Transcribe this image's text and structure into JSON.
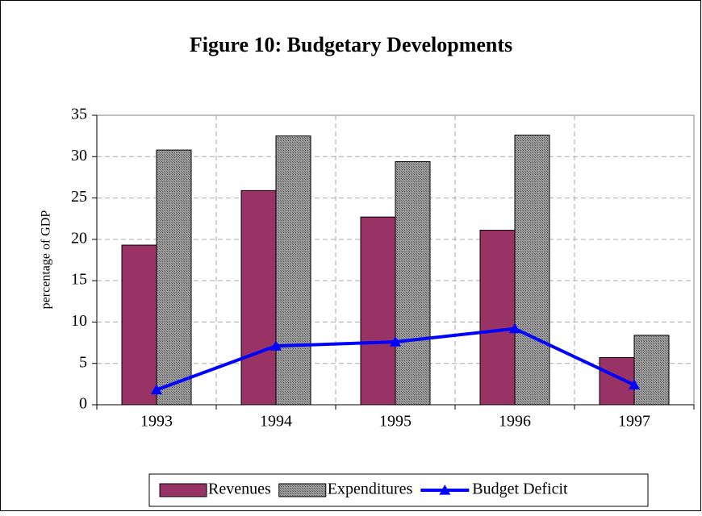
{
  "chart_data": {
    "type": "bar",
    "title": "Figure 10: Budgetary Developments",
    "y_label": "percentage of GDP",
    "categories": [
      "1993",
      "1994",
      "1995",
      "1996",
      "1997"
    ],
    "series": [
      {
        "name": "Revenues",
        "type": "bar",
        "color": "#993366",
        "values": [
          19.3,
          25.9,
          22.7,
          21.1,
          5.7
        ]
      },
      {
        "name": "Expenditures",
        "type": "bar",
        "color": "#808080",
        "values": [
          30.8,
          32.5,
          29.4,
          32.6,
          8.4
        ]
      },
      {
        "name": "Budget Deficit",
        "type": "line",
        "color": "#0000ff",
        "values": [
          1.8,
          7.1,
          7.6,
          9.2,
          2.4
        ]
      }
    ],
    "ylim": [
      0,
      35
    ],
    "yticks": [
      0,
      5,
      10,
      15,
      20,
      25,
      30,
      35
    ],
    "grid": true,
    "legend": "bottom"
  }
}
